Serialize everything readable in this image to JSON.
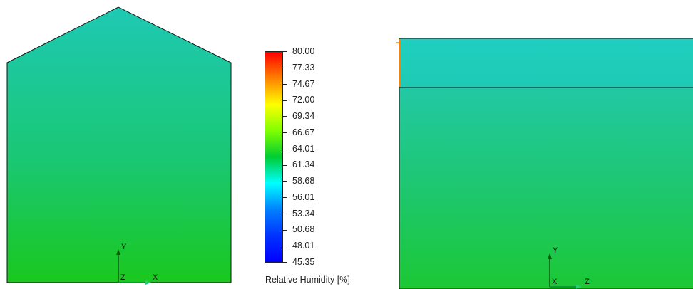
{
  "legend": {
    "title": "Relative Humidity [%]",
    "ticks": [
      "80.00",
      "77.33",
      "74.67",
      "72.00",
      "69.34",
      "66.67",
      "64.01",
      "61.34",
      "58.68",
      "56.01",
      "53.34",
      "50.68",
      "48.01",
      "45.35"
    ],
    "max": 80.0,
    "min": 45.35,
    "colors": [
      "#ff0000",
      "#ff8000",
      "#ffff00",
      "#80ff00",
      "#00cc33",
      "#00ffff",
      "#0080ff",
      "#0033ff",
      "#0000ff"
    ]
  },
  "front_view": {
    "axes": {
      "vertical": "Y",
      "horizontal": "X",
      "out_of_plane": "Z"
    },
    "colors": {
      "top": "#1ec9b4",
      "bottom": "#1ac81e"
    }
  },
  "side_view": {
    "axes": {
      "vertical": "Y",
      "horizontal": "Z",
      "out_of_plane": "X"
    },
    "colors": {
      "top_band": "#1fcfc0",
      "body_top": "#22c8a4",
      "body_bottom": "#1cc834",
      "edge_marker": "#ff8000"
    }
  }
}
